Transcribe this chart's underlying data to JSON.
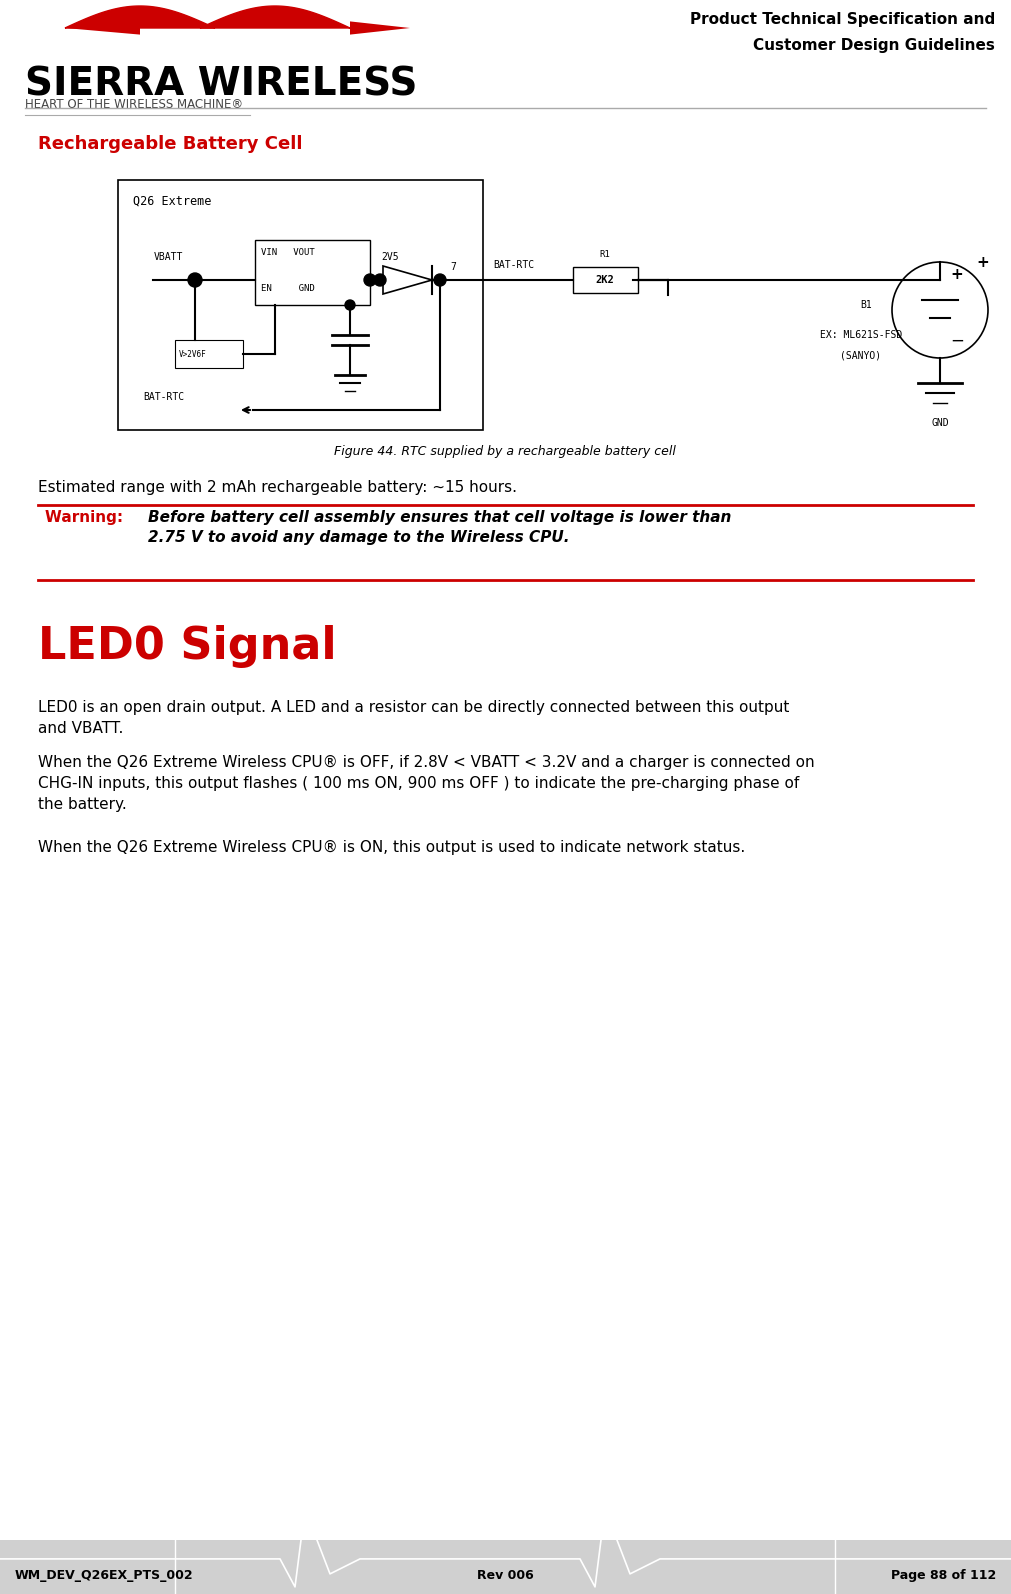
{
  "page_width": 10.11,
  "page_height": 15.94,
  "bg_color": "#ffffff",
  "header_title_line1": "Product Technical Specification and",
  "header_title_line2": "Customer Design Guidelines",
  "sierra_wireless_text": "SIERRA WIRELESS",
  "heart_text": "HEART OF THE WIRELESS MACHINE®",
  "section_title": "Rechargeable Battery Cell",
  "section_title_color": "#cc0000",
  "figure_caption": "Figure 44. RTC supplied by a rechargeable battery cell",
  "estimated_range_text": "Estimated range with 2 mAh rechargeable battery: ~15 hours.",
  "warning_label": "Warning:  ",
  "warning_label_color": "#cc0000",
  "warning_text": "Before battery cell assembly ensures that cell voltage is lower than\n2.75 V to avoid any damage to the Wireless CPU.",
  "led0_title": "LED0 Signal",
  "led0_title_color": "#cc0000",
  "led0_para1": "LED0 is an open drain output. A LED and a resistor can be directly connected between this output\nand VBATT.",
  "led0_para2": "When the Q26 Extreme Wireless CPU® is OFF, if 2.8V < VBATT < 3.2V and a charger is connected on\nCHG-IN inputs, this output flashes ( 100 ms ON, 900 ms OFF ) to indicate the pre-charging phase of\nthe battery.",
  "led0_para3": "When the Q26 Extreme Wireless CPU® is ON, this output is used to indicate network status.",
  "footer_left": "WM_DEV_Q26EX_PTS_002",
  "footer_mid": "Rev 006",
  "footer_right": "Page 88 of 112",
  "warning_border_color": "#cc0000",
  "header_sep_color": "#888888"
}
